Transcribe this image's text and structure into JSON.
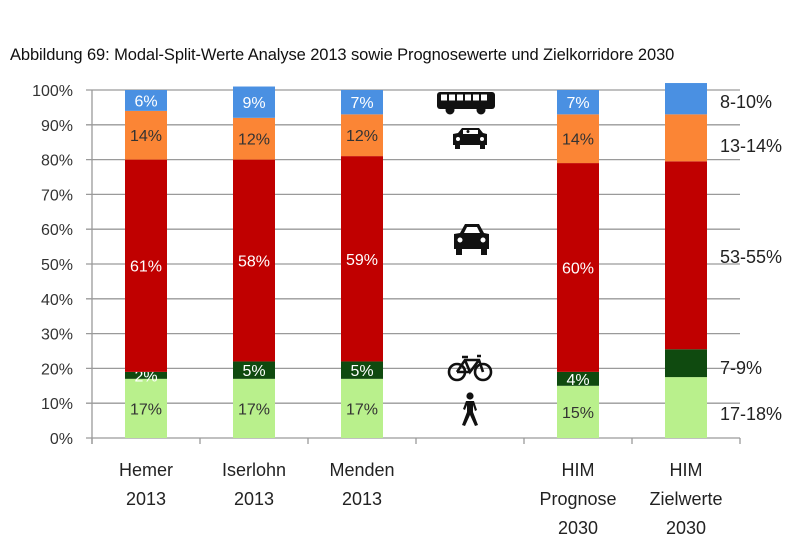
{
  "figure": {
    "title": "Abbildung 69: Modal-Split-Werte Analyse 2013 sowie Prognosewerte und Zielkorridore 2030"
  },
  "chart_data": {
    "type": "bar",
    "stacked": true,
    "title": "Abbildung 69: Modal-Split-Werte Analyse 2013 sowie Prognosewerte und Zielkorridore 2030",
    "xlabel": "",
    "ylabel": "",
    "ylim": [
      0,
      100
    ],
    "y_ticks": [
      "0%",
      "10%",
      "20%",
      "30%",
      "40%",
      "50%",
      "60%",
      "70%",
      "80%",
      "90%",
      "100%"
    ],
    "grid": true,
    "categories": [
      [
        "Hemer",
        "2013"
      ],
      [
        "Iserlohn",
        "2013"
      ],
      [
        "Menden",
        "2013"
      ],
      [],
      [
        "HIM",
        "Prognose",
        "2030"
      ],
      [
        "HIM",
        "Zielwerte",
        "2030"
      ]
    ],
    "series": [
      {
        "name": "Fuß",
        "icon": "pedestrian-icon",
        "color": "#b9f08c",
        "label_color": "#333333",
        "values": [
          17,
          17,
          17,
          null,
          15,
          17.5
        ],
        "labels": [
          "17%",
          "17%",
          "17%",
          null,
          "15%",
          null
        ]
      },
      {
        "name": "Rad",
        "icon": "bicycle-icon",
        "color": "#0f4a0f",
        "label_color": "#ffffff",
        "values": [
          2,
          5,
          5,
          null,
          4,
          8
        ],
        "labels": [
          "2%",
          "5%",
          "5%",
          null,
          "4%",
          null
        ]
      },
      {
        "name": "MIV Fahrer",
        "icon": "car-icon",
        "color": "#c00000",
        "label_color": "#ffffff",
        "values": [
          61,
          58,
          59,
          null,
          60,
          54
        ],
        "labels": [
          "61%",
          "58%",
          "59%",
          null,
          "60%",
          null
        ]
      },
      {
        "name": "MIV Mitfahrer",
        "icon": "car-passenger-icon",
        "color": "#fb8535",
        "label_color": "#333333",
        "values": [
          14,
          12,
          12,
          null,
          14,
          13.5
        ],
        "labels": [
          "14%",
          "12%",
          "12%",
          null,
          "14%",
          null
        ]
      },
      {
        "name": "ÖPNV",
        "icon": "bus-icon",
        "color": "#4a90e2",
        "label_color": "#ffffff",
        "values": [
          6,
          9,
          7,
          null,
          7,
          9
        ],
        "labels": [
          "6%",
          "9%",
          "7%",
          null,
          "7%",
          null
        ]
      }
    ],
    "target_ranges": [
      {
        "series": "ÖPNV",
        "label": "8-10%"
      },
      {
        "series": "MIV Mitfahrer",
        "label": "13-14%"
      },
      {
        "series": "MIV Fahrer",
        "label": "53-55%"
      },
      {
        "series": "Rad",
        "label": "7-9%"
      },
      {
        "series": "Fuß",
        "label": "17-18%"
      }
    ],
    "legend": "icons placed in empty column between Menden and HIM Prognose"
  }
}
